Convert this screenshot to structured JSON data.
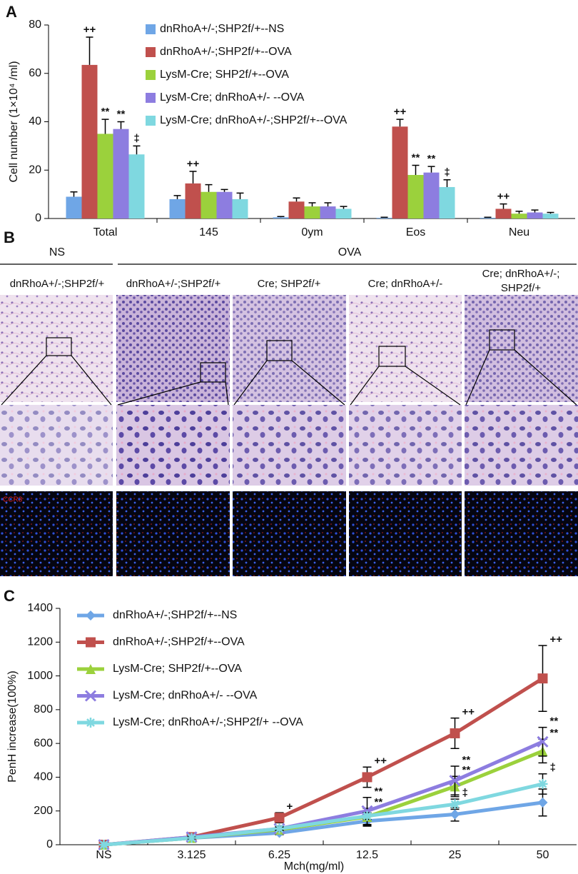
{
  "chart_data": [
    {
      "type": "bar",
      "panel_label": "A",
      "y_label": "Cell number (1×10⁴ /ml)",
      "categories": [
        "Total",
        "145",
        "0ym",
        "Eos",
        "Neu"
      ],
      "ylim": [
        0,
        80
      ],
      "yticks": [
        0,
        20,
        40,
        60,
        80
      ],
      "grid": false,
      "series": [
        {
          "name": "dnRhoA+/-;SHP2f/+--NS",
          "color": "#6fa6e6",
          "values": [
            9,
            8,
            0.5,
            0.3,
            0.3
          ],
          "errors": [
            2,
            1.5,
            0.3,
            0.2,
            0.2
          ],
          "significance": [
            null,
            null,
            null,
            null,
            null
          ]
        },
        {
          "name": "dnRhoA+/-;SHP2f/+--OVA",
          "color": "#c0504d",
          "values": [
            63.5,
            14.5,
            7,
            38,
            4
          ],
          "errors": [
            11.5,
            5,
            1.5,
            3,
            2
          ],
          "significance": [
            "++",
            "++",
            null,
            "++",
            "++"
          ]
        },
        {
          "name": "LysM-Cre; SHP2f/+--OVA",
          "color": "#9bd13c",
          "values": [
            35,
            11,
            5,
            18,
            2
          ],
          "errors": [
            6,
            3,
            1.5,
            4,
            1
          ],
          "significance": [
            "**",
            null,
            null,
            "**",
            null
          ]
        },
        {
          "name": "LysM-Cre; dnRhoA+/- --OVA",
          "color": "#8d7de0",
          "values": [
            37,
            11,
            5,
            19,
            2.5
          ],
          "errors": [
            3,
            1,
            1.5,
            2.5,
            1
          ],
          "significance": [
            "**",
            null,
            null,
            "**",
            null
          ]
        },
        {
          "name": "LysM-Cre; dnRhoA+/-;SHP2f/+--OVA",
          "color": "#7fd8e0",
          "values": [
            26.5,
            8,
            4,
            13,
            2
          ],
          "errors": [
            3.5,
            2.5,
            1,
            3,
            0.5
          ],
          "significance": [
            "‡",
            null,
            null,
            "‡",
            null
          ]
        }
      ]
    },
    {
      "type": "line",
      "panel_label": "C",
      "x_label": "Mch(mg/ml)",
      "y_label": "PenH increase(100%)",
      "categories": [
        "NS",
        "3.125",
        "6.25",
        "12.5",
        "25",
        "50"
      ],
      "ylim": [
        0,
        1400
      ],
      "yticks": [
        0,
        200,
        400,
        600,
        800,
        1000,
        1200,
        1400
      ],
      "grid": false,
      "series": [
        {
          "name": "dnRhoA+/-;SHP2f/+--NS",
          "color": "#6fa6e6",
          "marker": "diamond",
          "values": [
            0,
            40,
            70,
            140,
            180,
            250
          ],
          "errors": [
            0,
            5,
            10,
            30,
            40,
            80
          ],
          "significance": [
            null,
            null,
            null,
            null,
            null,
            null
          ]
        },
        {
          "name": "dnRhoA+/-;SHP2f/+--OVA",
          "color": "#c0504d",
          "marker": "square",
          "values": [
            0,
            45,
            160,
            400,
            660,
            985
          ],
          "errors": [
            0,
            5,
            30,
            60,
            90,
            195
          ],
          "significance": [
            null,
            null,
            "+",
            "++",
            "++",
            "++"
          ]
        },
        {
          "name": "LysM-Cre; SHP2f/+--OVA",
          "color": "#9bd13c",
          "marker": "triangle",
          "values": [
            0,
            40,
            90,
            165,
            345,
            555
          ],
          "errors": [
            0,
            5,
            15,
            50,
            60,
            70
          ],
          "significance": [
            null,
            null,
            null,
            "**",
            "**",
            "**"
          ]
        },
        {
          "name": "LysM-Cre; dnRhoA+/- --OVA",
          "color": "#8d7de0",
          "marker": "x",
          "values": [
            0,
            45,
            95,
            200,
            380,
            610
          ],
          "errors": [
            0,
            5,
            15,
            80,
            85,
            85
          ],
          "significance": [
            null,
            null,
            null,
            "**",
            "**",
            "**"
          ]
        },
        {
          "name": "LysM-Cre; dnRhoA+/-;SHP2f/+ --OVA",
          "color": "#7fd8e0",
          "marker": "star",
          "values": [
            0,
            40,
            95,
            170,
            240,
            360
          ],
          "errors": [
            0,
            5,
            10,
            20,
            30,
            60
          ],
          "significance": [
            null,
            null,
            null,
            null,
            "‡",
            "‡"
          ]
        }
      ]
    }
  ],
  "panel_b": {
    "label": "B",
    "groups": [
      "NS",
      "OVA"
    ],
    "columns": [
      [
        "dnRhoA+/-;SHP2f/+"
      ],
      [
        "dnRhoA+/-;SHP2f/+"
      ],
      [
        "Cre; SHP2f/+"
      ],
      [
        "Cre; dnRhoA+/-"
      ],
      [
        "Cre; dnRhoA+/-;",
        "SHP2f/+"
      ]
    ],
    "stain_label": "CCR3"
  }
}
